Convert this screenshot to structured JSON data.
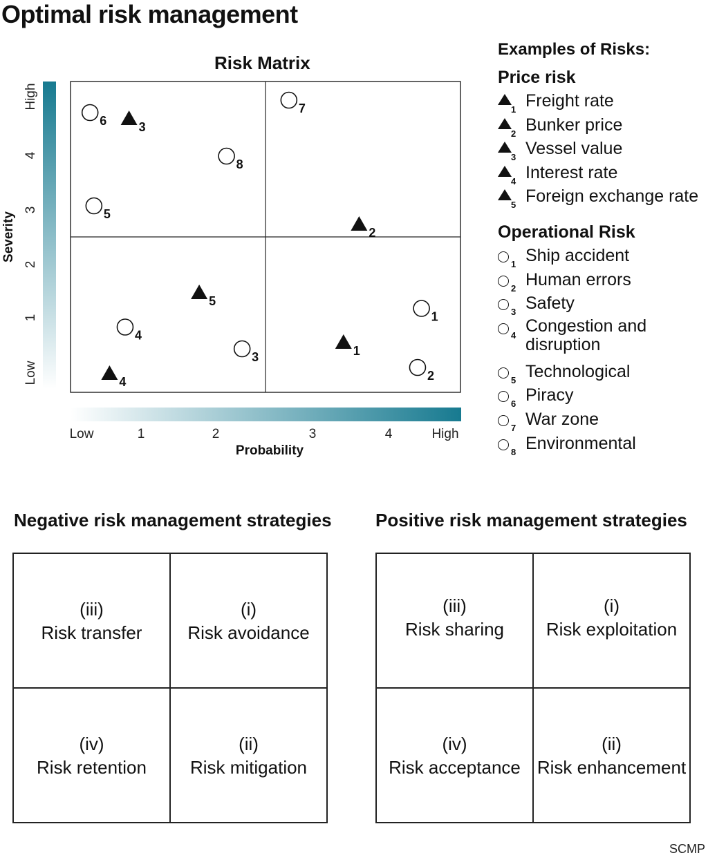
{
  "title": "Optimal risk management",
  "chart_data": {
    "type": "scatter",
    "title": "Risk Matrix",
    "xlabel": "Probability",
    "ylabel": "Severity",
    "xlim": [
      0,
      5
    ],
    "ylim": [
      0,
      5
    ],
    "x_ticks": [
      {
        "value": 0,
        "label": "Low"
      },
      {
        "value": 1,
        "label": "1"
      },
      {
        "value": 2,
        "label": "2"
      },
      {
        "value": 3,
        "label": "3"
      },
      {
        "value": 4,
        "label": "4"
      },
      {
        "value": 5,
        "label": "High"
      }
    ],
    "y_ticks": [
      {
        "value": 0,
        "label": "Low"
      },
      {
        "value": 1,
        "label": "1"
      },
      {
        "value": 2,
        "label": "2"
      },
      {
        "value": 3,
        "label": "3"
      },
      {
        "value": 4,
        "label": "4"
      },
      {
        "value": 5,
        "label": "High"
      }
    ],
    "quadrant_dividers": {
      "x": 2.5,
      "y": 2.5
    },
    "gradient_color": "#177a90",
    "series": [
      {
        "name": "Price risk",
        "marker": "triangle",
        "points": [
          {
            "id": "1",
            "x": 3.5,
            "y": 0.8
          },
          {
            "id": "2",
            "x": 3.7,
            "y": 2.7
          },
          {
            "id": "3",
            "x": 0.75,
            "y": 4.4
          },
          {
            "id": "4",
            "x": 0.5,
            "y": 0.3
          },
          {
            "id": "5",
            "x": 1.65,
            "y": 1.6
          }
        ]
      },
      {
        "name": "Operational Risk",
        "marker": "circle",
        "points": [
          {
            "id": "1",
            "x": 4.5,
            "y": 1.35
          },
          {
            "id": "2",
            "x": 4.45,
            "y": 0.4
          },
          {
            "id": "3",
            "x": 2.2,
            "y": 0.7
          },
          {
            "id": "4",
            "x": 0.7,
            "y": 1.05
          },
          {
            "id": "5",
            "x": 0.3,
            "y": 3.0
          },
          {
            "id": "6",
            "x": 0.25,
            "y": 4.5
          },
          {
            "id": "7",
            "x": 2.8,
            "y": 4.7
          },
          {
            "id": "8",
            "x": 2.0,
            "y": 3.8
          }
        ]
      }
    ]
  },
  "legend": {
    "heading": "Examples of Risks:",
    "price": {
      "title": "Price risk",
      "items": [
        {
          "num": "1",
          "label": "Freight rate"
        },
        {
          "num": "2",
          "label": "Bunker price"
        },
        {
          "num": "3",
          "label": "Vessel value"
        },
        {
          "num": "4",
          "label": "Interest rate"
        },
        {
          "num": "5",
          "label": "Foreign exchange rate"
        }
      ]
    },
    "operational": {
      "title": "Operational Risk",
      "items": [
        {
          "num": "1",
          "label": "Ship accident"
        },
        {
          "num": "2",
          "label": "Human errors"
        },
        {
          "num": "3",
          "label": "Safety"
        },
        {
          "num": "4",
          "label": "Congestion and disruption"
        },
        {
          "num": "5",
          "label": "Technological"
        },
        {
          "num": "6",
          "label": "Piracy"
        },
        {
          "num": "7",
          "label": "War zone"
        },
        {
          "num": "8",
          "label": "Environmental"
        }
      ]
    }
  },
  "negative": {
    "title": "Negative risk management strategies",
    "cells": [
      {
        "num": "(iii)",
        "label": "Risk transfer"
      },
      {
        "num": "(i)",
        "label": "Risk avoidance"
      },
      {
        "num": "(iv)",
        "label": "Risk retention"
      },
      {
        "num": "(ii)",
        "label": "Risk mitigation"
      }
    ]
  },
  "positive": {
    "title": "Positive risk management strategies",
    "cells": [
      {
        "num": "(iii)",
        "label": "Risk sharing"
      },
      {
        "num": "(i)",
        "label": "Risk exploitation"
      },
      {
        "num": "(iv)",
        "label": "Risk acceptance"
      },
      {
        "num": "(ii)",
        "label": "Risk enhancement"
      }
    ]
  },
  "source": "SCMP"
}
